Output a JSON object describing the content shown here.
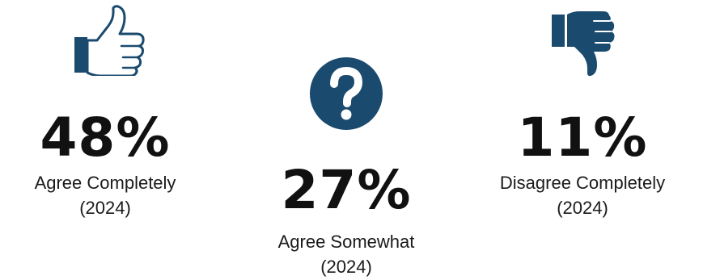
{
  "colors": {
    "icon": "#1a4a6e",
    "text": "#111111"
  },
  "stats": [
    {
      "icon": "thumbs-up-icon",
      "percent": "48%",
      "label_line1": "Agree Completely",
      "label_line2": "(2024)",
      "value": 48
    },
    {
      "icon": "question-mark-icon",
      "percent": "27%",
      "label_line1": "Agree Somewhat",
      "label_line2": "(2024)",
      "value": 27
    },
    {
      "icon": "thumbs-down-icon",
      "percent": "11%",
      "label_line1": "Disagree Completely",
      "label_line2": "(2024)",
      "value": 11
    }
  ]
}
